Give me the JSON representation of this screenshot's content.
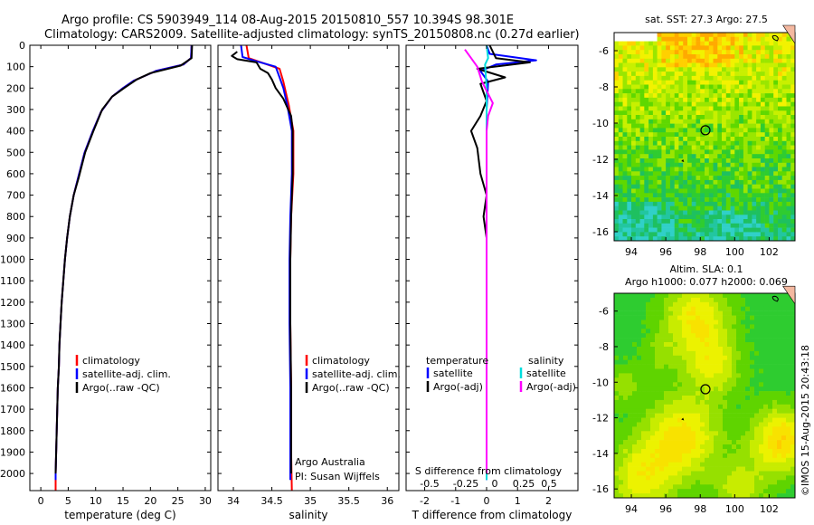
{
  "header": {
    "line1": "Argo profile: CS 5903949_114 08-Aug-2015 20150810_557 10.394S 98.301E",
    "line2": "Climatology: CARS2009. Satellite-adjusted climatology: synTS_20150808.nc (0.27d earlier)"
  },
  "credit": "©IMOS 15-Aug-2015 20:43:18",
  "chart_data": [
    {
      "type": "line",
      "name": "temperature",
      "xlabel": "temperature (deg C)",
      "ylabel": "",
      "xlim": [
        -2,
        31
      ],
      "ylim": [
        2080,
        0
      ],
      "xticks": [
        0,
        5,
        10,
        15,
        20,
        25,
        30
      ],
      "yticks": [
        0,
        100,
        200,
        300,
        400,
        500,
        600,
        700,
        800,
        900,
        1000,
        1100,
        1200,
        1300,
        1400,
        1500,
        1600,
        1700,
        1800,
        1900,
        2000
      ],
      "legend": [
        "climatology",
        "satellite-adj. clim.",
        "Argo(..raw -QC)"
      ],
      "series": [
        {
          "name": "climatology",
          "color": "#ff0000",
          "points": [
            [
              27.5,
              0
            ],
            [
              27.4,
              60
            ],
            [
              26,
              90
            ],
            [
              21,
              120
            ],
            [
              17,
              165
            ],
            [
              15,
              200
            ],
            [
              13,
              240
            ],
            [
              11,
              310
            ],
            [
              9.5,
              400
            ],
            [
              8,
              500
            ],
            [
              6.8,
              620
            ],
            [
              6,
              700
            ],
            [
              5.3,
              800
            ],
            [
              4.8,
              900
            ],
            [
              4.4,
              1000
            ],
            [
              4.1,
              1100
            ],
            [
              3.8,
              1200
            ],
            [
              3.6,
              1300
            ],
            [
              3.4,
              1400
            ],
            [
              3.3,
              1500
            ],
            [
              3.1,
              1600
            ],
            [
              3,
              1700
            ],
            [
              2.9,
              1800
            ],
            [
              2.8,
              1900
            ],
            [
              2.7,
              2000
            ],
            [
              2.7,
              2080
            ]
          ]
        },
        {
          "name": "satellite-adj. clim.",
          "color": "#0000ff",
          "points": [
            [
              27.5,
              0
            ],
            [
              27.4,
              60
            ],
            [
              26,
              90
            ],
            [
              21,
              120
            ],
            [
              17,
              165
            ],
            [
              15,
              200
            ],
            [
              13,
              240
            ],
            [
              11,
              310
            ],
            [
              9.5,
              400
            ],
            [
              8,
              500
            ],
            [
              6.8,
              620
            ],
            [
              6,
              700
            ],
            [
              5.3,
              800
            ],
            [
              4.8,
              900
            ],
            [
              4.4,
              1000
            ],
            [
              4.1,
              1100
            ],
            [
              3.8,
              1200
            ],
            [
              3.6,
              1300
            ],
            [
              3.4,
              1400
            ],
            [
              3.3,
              1500
            ],
            [
              3.1,
              1600
            ],
            [
              3,
              1700
            ],
            [
              2.9,
              1800
            ],
            [
              2.8,
              1900
            ],
            [
              2.7,
              2000
            ],
            [
              2.7,
              2030
            ]
          ]
        },
        {
          "name": "Argo",
          "color": "#000000",
          "points": [
            [
              27.6,
              0
            ],
            [
              27.5,
              60
            ],
            [
              25.5,
              95
            ],
            [
              20,
              130
            ],
            [
              17.5,
              160
            ],
            [
              15.2,
              200
            ],
            [
              13,
              240
            ],
            [
              11.2,
              300
            ],
            [
              9.6,
              400
            ],
            [
              8.1,
              500
            ],
            [
              6.9,
              620
            ],
            [
              6,
              700
            ],
            [
              5.3,
              800
            ],
            [
              4.8,
              900
            ],
            [
              4.4,
              1000
            ],
            [
              4.1,
              1100
            ],
            [
              3.8,
              1200
            ],
            [
              3.6,
              1300
            ],
            [
              3.4,
              1400
            ],
            [
              3.3,
              1500
            ],
            [
              3.1,
              1600
            ],
            [
              3,
              1700
            ],
            [
              2.9,
              1800
            ],
            [
              2.8,
              1900
            ],
            [
              2.7,
              2000
            ]
          ]
        }
      ]
    },
    {
      "type": "line",
      "name": "salinity",
      "xlabel": "salinity",
      "xlim": [
        33.8,
        36.15
      ],
      "ylim": [
        2080,
        0
      ],
      "xticks": [
        34,
        34.5,
        35,
        35.5,
        36
      ],
      "legend": [
        "climatology",
        "satellite-adj. clim.",
        "Argo(..raw -QC)"
      ],
      "series": [
        {
          "name": "climatology",
          "color": "#ff0000",
          "points": [
            [
              34.17,
              0
            ],
            [
              34.2,
              60
            ],
            [
              34.4,
              85
            ],
            [
              34.6,
              110
            ],
            [
              34.65,
              170
            ],
            [
              34.72,
              280
            ],
            [
              34.78,
              400
            ],
            [
              34.78,
              600
            ],
            [
              34.75,
              800
            ],
            [
              34.74,
              1000
            ],
            [
              34.74,
              1300
            ],
            [
              34.75,
              1600
            ],
            [
              34.75,
              1900
            ],
            [
              34.76,
              2080
            ]
          ]
        },
        {
          "name": "satellite-adj. clim.",
          "color": "#0000ff",
          "points": [
            [
              34.1,
              0
            ],
            [
              34.12,
              55
            ],
            [
              34.3,
              75
            ],
            [
              34.55,
              100
            ],
            [
              34.6,
              150
            ],
            [
              34.65,
              200
            ],
            [
              34.7,
              280
            ],
            [
              34.76,
              400
            ],
            [
              34.76,
              600
            ],
            [
              34.74,
              800
            ],
            [
              34.73,
              1000
            ],
            [
              34.73,
              1300
            ],
            [
              34.74,
              1600
            ],
            [
              34.74,
              1900
            ],
            [
              34.74,
              2030
            ]
          ]
        },
        {
          "name": "Argo",
          "color": "#000000",
          "points": [
            [
              34.05,
              30
            ],
            [
              33.98,
              50
            ],
            [
              34.05,
              65
            ],
            [
              34.3,
              80
            ],
            [
              34.35,
              110
            ],
            [
              34.45,
              130
            ],
            [
              34.5,
              160
            ],
            [
              34.55,
              200
            ],
            [
              34.65,
              250
            ],
            [
              34.7,
              290
            ],
            [
              34.75,
              330
            ],
            [
              34.77,
              400
            ],
            [
              34.77,
              600
            ],
            [
              34.75,
              800
            ],
            [
              34.74,
              1000
            ],
            [
              34.74,
              1300
            ],
            [
              34.75,
              1600
            ],
            [
              34.75,
              1900
            ],
            [
              34.75,
              2000
            ]
          ]
        }
      ],
      "annotations": [
        "Argo Australia",
        "PI: Susan Wijffels"
      ]
    },
    {
      "type": "line",
      "name": "difference",
      "xlabel": "T difference from climatology",
      "secondary_xlabel": "S difference from climatology",
      "xlim": [
        -2.6,
        2.95
      ],
      "ylim": [
        2080,
        0
      ],
      "xticks": [
        -2,
        -1,
        0,
        1,
        2
      ],
      "secondary_xticks": [
        "-0.5",
        "-0.25",
        "0",
        "0.25",
        "0.5"
      ],
      "legend": {
        "temperature": [
          "temperature",
          "satellite",
          "Argo(-adj)"
        ],
        "salinity": [
          "salinity",
          "satellite",
          "Argo(-adj)"
        ]
      },
      "series": [
        {
          "name": "T satellite",
          "color": "#0000ff",
          "points": [
            [
              0,
              0
            ],
            [
              0.1,
              40
            ],
            [
              1.6,
              70
            ],
            [
              0.3,
              90
            ],
            [
              -0.2,
              120
            ],
            [
              0.05,
              170
            ],
            [
              0,
              300
            ],
            [
              0,
              2030
            ]
          ]
        },
        {
          "name": "T Argo(-adj)",
          "color": "#000000",
          "points": [
            [
              0.1,
              0
            ],
            [
              0.3,
              60
            ],
            [
              1.4,
              80
            ],
            [
              -0.3,
              110
            ],
            [
              0.6,
              150
            ],
            [
              -0.2,
              180
            ],
            [
              0,
              260
            ],
            [
              -0.2,
              330
            ],
            [
              -0.5,
              400
            ],
            [
              -0.3,
              480
            ],
            [
              -0.2,
              600
            ],
            [
              0,
              700
            ],
            [
              -0.1,
              800
            ],
            [
              0,
              900
            ],
            [
              0,
              2000
            ]
          ]
        },
        {
          "name": "S satellite",
          "color": "#00dddd",
          "points": [
            [
              0,
              0
            ],
            [
              0.05,
              60
            ],
            [
              -0.05,
              90
            ],
            [
              0,
              200
            ],
            [
              0,
              2030
            ]
          ]
        },
        {
          "name": "S Argo(-adj)",
          "color": "#ff00ff",
          "points": [
            [
              -0.7,
              20
            ],
            [
              -0.5,
              60
            ],
            [
              -0.3,
              100
            ],
            [
              -0.15,
              170
            ],
            [
              0.2,
              270
            ],
            [
              0.05,
              330
            ],
            [
              0,
              400
            ],
            [
              0,
              2000
            ]
          ]
        }
      ]
    },
    {
      "type": "heatmap",
      "name": "sst-map",
      "title": "sat. SST: 27.3 Argo: 27.5",
      "xlim": [
        93,
        103.5
      ],
      "ylim": [
        -16.5,
        -5
      ],
      "xticks": [
        94,
        96,
        98,
        100,
        102
      ],
      "yticks": [
        -6,
        -8,
        -10,
        -12,
        -14,
        -16
      ],
      "argo_position": [
        98.301,
        -10.394
      ]
    },
    {
      "type": "heatmap",
      "name": "sla-map",
      "title_line1": "Altim. SLA: 0.1",
      "title_line2": "Argo h1000: 0.077 h2000: 0.069",
      "xlim": [
        93,
        103.5
      ],
      "ylim": [
        -16.5,
        -5
      ],
      "xticks": [
        94,
        96,
        98,
        100,
        102
      ],
      "yticks": [
        -6,
        -8,
        -10,
        -12,
        -14,
        -16
      ],
      "argo_position": [
        98.301,
        -10.394
      ]
    }
  ]
}
